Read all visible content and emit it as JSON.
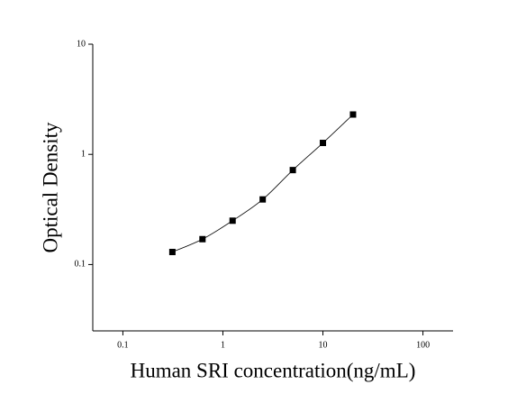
{
  "chart_data": {
    "type": "scatter",
    "x_label": "Human SRI concentration(ng/mL)",
    "y_label": "Optical Density",
    "x": [
      0.3125,
      0.625,
      1.25,
      2.5,
      5,
      10,
      20
    ],
    "values": [
      0.13,
      0.17,
      0.25,
      0.39,
      0.72,
      1.27,
      2.3
    ],
    "color": "#000000",
    "xlim": [
      0.05,
      200
    ],
    "xticks": [
      0.1,
      1,
      10,
      100
    ],
    "ylim": [
      0.025,
      10
    ],
    "yticks": [
      0.1,
      1,
      10
    ],
    "xscale": "log",
    "yscale": "log",
    "fit_curve": true
  }
}
